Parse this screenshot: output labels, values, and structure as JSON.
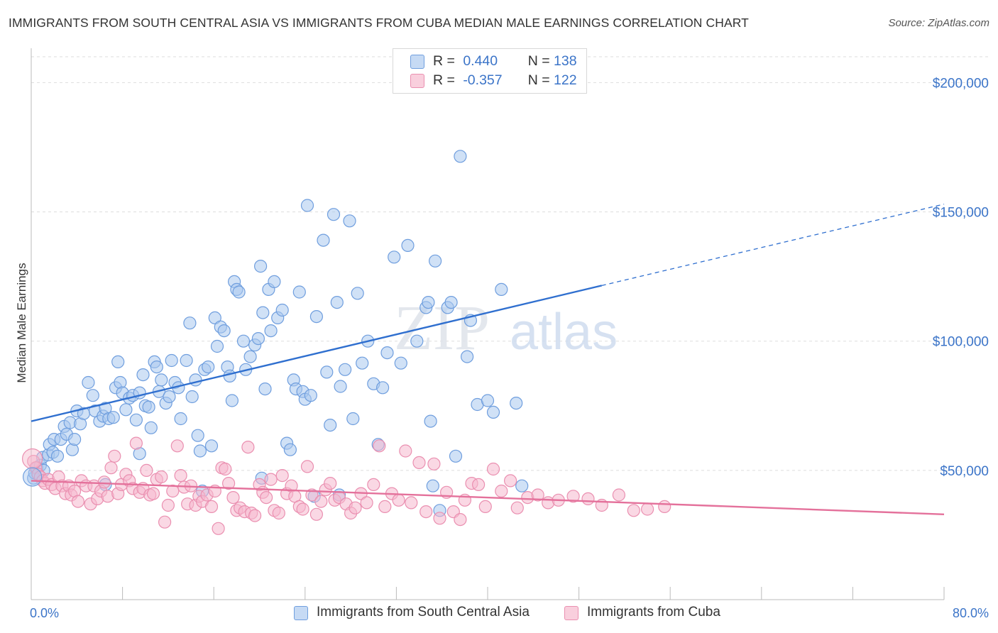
{
  "title": "IMMIGRANTS FROM SOUTH CENTRAL ASIA VS IMMIGRANTS FROM CUBA MEDIAN MALE EARNINGS CORRELATION CHART",
  "source": "Source: ZipAtlas.com",
  "watermark": {
    "zip": "ZIP",
    "atlas": "atlas"
  },
  "colors": {
    "blue_fill": "#a9c8ef",
    "blue_stroke": "#6f9ede",
    "blue_line": "#2f6fcf",
    "pink_fill": "#f6b8cd",
    "pink_stroke": "#ea8fb0",
    "pink_line": "#e4719b",
    "grid": "#dddddd",
    "axis_text": "#3b74c8"
  },
  "legend": {
    "rows": [
      {
        "r_label": "R =",
        "r_value": "0.440",
        "n_label": "N =",
        "n_value": "138"
      },
      {
        "r_label": "R =",
        "r_value": "-0.357",
        "n_label": "N =",
        "n_value": "122"
      }
    ]
  },
  "chart_data": {
    "type": "scatter",
    "title": "IMMIGRANTS FROM SOUTH CENTRAL ASIA VS IMMIGRANTS FROM CUBA MEDIAN MALE EARNINGS CORRELATION CHART",
    "xlabel": "",
    "ylabel": "Median Male Earnings",
    "xlim": [
      0,
      80
    ],
    "ylim": [
      0,
      210000
    ],
    "x_tick_labels": [
      "0.0%",
      "80.0%"
    ],
    "y_ticks": [
      50000,
      100000,
      150000,
      200000
    ],
    "y_tick_labels": [
      "$50,000",
      "$100,000",
      "$150,000",
      "$200,000"
    ],
    "grid": true,
    "legend_position": "top-center",
    "series": [
      {
        "name": "Immigrants from South Central Asia",
        "color": "#6f9ede",
        "trend": {
          "x0": 0,
          "y0": 69000,
          "x1": 50,
          "y1": 121500,
          "dash_to_x": 80,
          "dash_to_y": 153000
        },
        "points": [
          [
            0.2,
            47000
          ],
          [
            0.3,
            49000
          ],
          [
            0.5,
            51000
          ],
          [
            0.6,
            48500
          ],
          [
            0.8,
            52000
          ],
          [
            1.0,
            55000
          ],
          [
            1.1,
            50000
          ],
          [
            1.5,
            56000
          ],
          [
            1.6,
            60000
          ],
          [
            1.9,
            57000
          ],
          [
            2.0,
            62000
          ],
          [
            2.3,
            55500
          ],
          [
            2.6,
            62000
          ],
          [
            2.9,
            67000
          ],
          [
            3.1,
            64000
          ],
          [
            3.4,
            68500
          ],
          [
            3.6,
            58000
          ],
          [
            3.8,
            62000
          ],
          [
            4.0,
            73000
          ],
          [
            4.3,
            68000
          ],
          [
            4.6,
            72000
          ],
          [
            5.0,
            84000
          ],
          [
            5.4,
            79000
          ],
          [
            5.6,
            73000
          ],
          [
            6.0,
            69000
          ],
          [
            6.3,
            71000
          ],
          [
            6.5,
            74000
          ],
          [
            6.8,
            70000
          ],
          [
            7.2,
            70500
          ],
          [
            7.4,
            82000
          ],
          [
            7.6,
            92000
          ],
          [
            7.8,
            84000
          ],
          [
            8.0,
            80000
          ],
          [
            8.3,
            73500
          ],
          [
            8.6,
            78000
          ],
          [
            8.9,
            79000
          ],
          [
            9.2,
            69500
          ],
          [
            9.5,
            80000
          ],
          [
            9.8,
            87000
          ],
          [
            10.0,
            75000
          ],
          [
            10.3,
            74500
          ],
          [
            10.5,
            66500
          ],
          [
            10.8,
            92000
          ],
          [
            11.0,
            90000
          ],
          [
            11.2,
            80500
          ],
          [
            11.4,
            85000
          ],
          [
            11.8,
            76000
          ],
          [
            12.1,
            78500
          ],
          [
            12.3,
            92500
          ],
          [
            12.6,
            84000
          ],
          [
            12.9,
            82000
          ],
          [
            13.1,
            70000
          ],
          [
            13.6,
            92500
          ],
          [
            13.9,
            107000
          ],
          [
            14.1,
            78500
          ],
          [
            14.4,
            85000
          ],
          [
            14.6,
            63500
          ],
          [
            14.8,
            57500
          ],
          [
            15.2,
            89000
          ],
          [
            15.5,
            90000
          ],
          [
            15.8,
            59500
          ],
          [
            16.1,
            109000
          ],
          [
            16.3,
            98000
          ],
          [
            16.6,
            105500
          ],
          [
            16.9,
            104000
          ],
          [
            17.2,
            90000
          ],
          [
            17.4,
            86500
          ],
          [
            17.6,
            77000
          ],
          [
            17.8,
            123000
          ],
          [
            18.0,
            120000
          ],
          [
            18.2,
            119000
          ],
          [
            18.6,
            100000
          ],
          [
            18.8,
            89000
          ],
          [
            19.2,
            94000
          ],
          [
            19.6,
            98500
          ],
          [
            19.9,
            101000
          ],
          [
            20.1,
            129000
          ],
          [
            20.3,
            111000
          ],
          [
            20.5,
            81500
          ],
          [
            20.8,
            120000
          ],
          [
            21.0,
            104000
          ],
          [
            21.3,
            123000
          ],
          [
            21.6,
            109000
          ],
          [
            22.0,
            112000
          ],
          [
            22.4,
            60500
          ],
          [
            22.7,
            58000
          ],
          [
            23.0,
            85000
          ],
          [
            23.2,
            81500
          ],
          [
            23.5,
            119000
          ],
          [
            23.8,
            80500
          ],
          [
            24.0,
            77500
          ],
          [
            24.2,
            152500
          ],
          [
            24.5,
            79000
          ],
          [
            25.0,
            109500
          ],
          [
            25.6,
            139000
          ],
          [
            25.9,
            88000
          ],
          [
            26.2,
            67500
          ],
          [
            26.5,
            149000
          ],
          [
            26.8,
            115000
          ],
          [
            27.1,
            82500
          ],
          [
            27.5,
            89000
          ],
          [
            27.9,
            146500
          ],
          [
            28.2,
            70000
          ],
          [
            28.6,
            118500
          ],
          [
            29.0,
            91500
          ],
          [
            29.5,
            100000
          ],
          [
            30.0,
            83500
          ],
          [
            30.4,
            60000
          ],
          [
            30.8,
            82000
          ],
          [
            31.2,
            95500
          ],
          [
            31.8,
            132500
          ],
          [
            32.4,
            91500
          ],
          [
            33.0,
            137000
          ],
          [
            33.8,
            100000
          ],
          [
            34.6,
            113000
          ],
          [
            34.8,
            115000
          ],
          [
            35.0,
            69000
          ],
          [
            35.4,
            131000
          ],
          [
            35.8,
            34500
          ],
          [
            36.5,
            113000
          ],
          [
            36.8,
            115000
          ],
          [
            37.2,
            55500
          ],
          [
            37.6,
            171500
          ],
          [
            38.2,
            94000
          ],
          [
            38.5,
            108000
          ],
          [
            39.1,
            75500
          ],
          [
            40.0,
            77000
          ],
          [
            40.5,
            72500
          ],
          [
            41.2,
            120000
          ],
          [
            42.5,
            76000
          ],
          [
            43.0,
            44000
          ],
          [
            20.2,
            47000
          ],
          [
            27.0,
            40500
          ],
          [
            24.8,
            40000
          ],
          [
            15.0,
            42000
          ],
          [
            6.5,
            44500
          ],
          [
            35.2,
            44000
          ],
          [
            9.5,
            56500
          ]
        ]
      },
      {
        "name": "Immigrants from Cuba",
        "color": "#ea8fb0",
        "trend": {
          "x0": 0,
          "y0": 46000,
          "x1": 80,
          "y1": 33000
        },
        "points": [
          [
            0.2,
            53500
          ],
          [
            0.4,
            51000
          ],
          [
            0.6,
            48500
          ],
          [
            0.8,
            47500
          ],
          [
            1.0,
            46000
          ],
          [
            1.2,
            45000
          ],
          [
            1.5,
            46500
          ],
          [
            1.8,
            44500
          ],
          [
            2.1,
            43000
          ],
          [
            2.4,
            47500
          ],
          [
            2.7,
            44000
          ],
          [
            3.0,
            41000
          ],
          [
            3.3,
            44000
          ],
          [
            3.5,
            40500
          ],
          [
            3.8,
            42000
          ],
          [
            4.1,
            38000
          ],
          [
            4.4,
            46000
          ],
          [
            4.8,
            44000
          ],
          [
            5.2,
            37000
          ],
          [
            5.5,
            44000
          ],
          [
            5.8,
            39000
          ],
          [
            6.1,
            42000
          ],
          [
            6.4,
            45500
          ],
          [
            6.7,
            40000
          ],
          [
            7.0,
            51000
          ],
          [
            7.3,
            55500
          ],
          [
            7.6,
            41000
          ],
          [
            7.9,
            44500
          ],
          [
            8.3,
            48500
          ],
          [
            8.6,
            46000
          ],
          [
            8.9,
            43000
          ],
          [
            9.2,
            60500
          ],
          [
            9.5,
            41500
          ],
          [
            9.8,
            43000
          ],
          [
            10.1,
            50000
          ],
          [
            10.4,
            40500
          ],
          [
            10.7,
            41000
          ],
          [
            11.0,
            46500
          ],
          [
            11.4,
            47500
          ],
          [
            11.7,
            30000
          ],
          [
            12.0,
            36500
          ],
          [
            12.4,
            42000
          ],
          [
            12.8,
            59500
          ],
          [
            13.1,
            48000
          ],
          [
            13.4,
            43500
          ],
          [
            13.7,
            37000
          ],
          [
            14.0,
            44000
          ],
          [
            14.4,
            36500
          ],
          [
            14.7,
            40000
          ],
          [
            15.0,
            38000
          ],
          [
            15.4,
            40500
          ],
          [
            15.8,
            36000
          ],
          [
            16.1,
            42000
          ],
          [
            16.4,
            27500
          ],
          [
            16.7,
            51000
          ],
          [
            17.0,
            50500
          ],
          [
            17.3,
            45000
          ],
          [
            17.7,
            39500
          ],
          [
            18.0,
            34500
          ],
          [
            18.3,
            35500
          ],
          [
            18.7,
            34000
          ],
          [
            19.0,
            59000
          ],
          [
            19.3,
            33500
          ],
          [
            19.6,
            32500
          ],
          [
            20.0,
            44500
          ],
          [
            20.3,
            41500
          ],
          [
            20.6,
            39500
          ],
          [
            21.0,
            46500
          ],
          [
            21.3,
            34500
          ],
          [
            21.7,
            33500
          ],
          [
            22.0,
            48000
          ],
          [
            22.4,
            41000
          ],
          [
            22.8,
            44000
          ],
          [
            23.1,
            40000
          ],
          [
            23.5,
            36000
          ],
          [
            23.8,
            35000
          ],
          [
            24.2,
            51500
          ],
          [
            24.6,
            40500
          ],
          [
            25.0,
            33000
          ],
          [
            25.4,
            38000
          ],
          [
            25.8,
            42500
          ],
          [
            26.2,
            45000
          ],
          [
            26.6,
            38500
          ],
          [
            27.0,
            39500
          ],
          [
            27.6,
            37000
          ],
          [
            28.0,
            33500
          ],
          [
            28.4,
            35500
          ],
          [
            28.9,
            41000
          ],
          [
            29.4,
            37500
          ],
          [
            30.0,
            44500
          ],
          [
            30.5,
            59500
          ],
          [
            31.0,
            36000
          ],
          [
            31.6,
            41000
          ],
          [
            32.2,
            38500
          ],
          [
            32.8,
            57500
          ],
          [
            33.3,
            37500
          ],
          [
            34.0,
            53000
          ],
          [
            34.6,
            34000
          ],
          [
            35.3,
            52500
          ],
          [
            35.8,
            31500
          ],
          [
            36.4,
            41500
          ],
          [
            37.0,
            34000
          ],
          [
            37.6,
            31000
          ],
          [
            38.0,
            38500
          ],
          [
            38.6,
            45000
          ],
          [
            39.2,
            44500
          ],
          [
            39.8,
            36000
          ],
          [
            40.5,
            50500
          ],
          [
            41.2,
            42000
          ],
          [
            42.0,
            46000
          ],
          [
            42.6,
            35500
          ],
          [
            43.5,
            39500
          ],
          [
            44.4,
            40500
          ],
          [
            45.3,
            37500
          ],
          [
            46.2,
            38500
          ],
          [
            47.5,
            40000
          ],
          [
            48.8,
            39000
          ],
          [
            50.0,
            36500
          ],
          [
            51.5,
            40500
          ],
          [
            52.8,
            34500
          ],
          [
            54.0,
            35000
          ],
          [
            55.5,
            36000
          ]
        ]
      }
    ]
  },
  "bottom_legend": {
    "items": [
      {
        "label": "Immigrants from South Central Asia"
      },
      {
        "label": "Immigrants from Cuba"
      }
    ]
  }
}
